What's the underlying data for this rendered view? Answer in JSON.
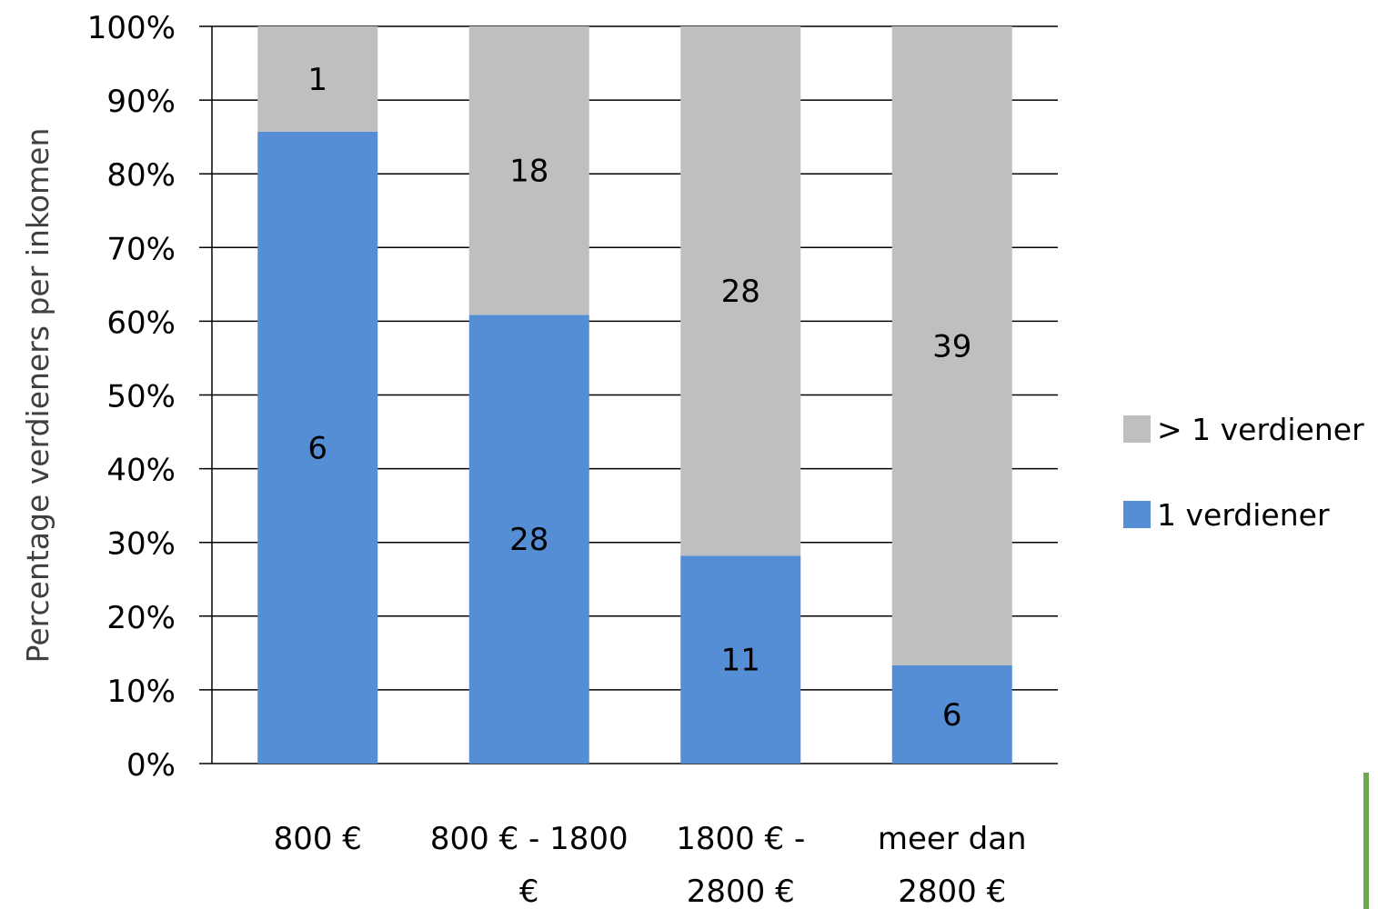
{
  "chart_data": {
    "type": "bar",
    "stacked": true,
    "percent_stacked": true,
    "categories": [
      [
        "800 €"
      ],
      [
        "800 € - 1800",
        "€"
      ],
      [
        "1800 € -",
        "2800 €"
      ],
      [
        "meer dan",
        "2800 €"
      ]
    ],
    "series": [
      {
        "name": "1 verdiener",
        "color": "#558ed5",
        "values": [
          6,
          28,
          11,
          6
        ],
        "labels": [
          "6",
          "28",
          "11",
          "6"
        ]
      },
      {
        "name": "> 1 verdiener",
        "color": "#bfbfbf",
        "values": [
          1,
          18,
          28,
          39
        ],
        "labels": [
          "1",
          "18",
          "28",
          "39"
        ]
      }
    ],
    "ylabel": "Percentage verdieners per inkomen",
    "ylim": [
      0,
      100
    ],
    "yticks": [
      "0%",
      "10%",
      "20%",
      "30%",
      "40%",
      "50%",
      "60%",
      "70%",
      "80%",
      "90%",
      "100%"
    ],
    "grid": true,
    "legend": "right",
    "legend_order": [
      "> 1 verdiener",
      "1 verdiener"
    ]
  },
  "colors": {
    "gridline": "#000000",
    "text": "#000000",
    "corner_accent": "#6aa84f"
  }
}
